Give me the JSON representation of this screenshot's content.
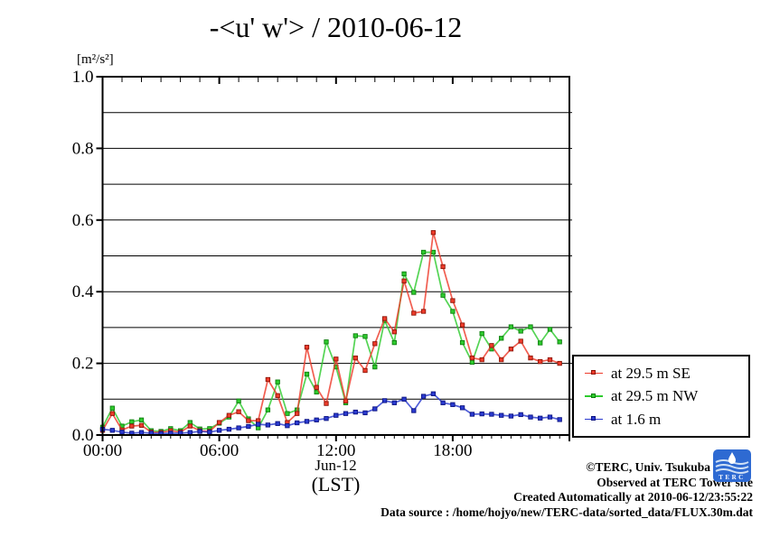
{
  "y_axis_unit": "[m²/s²]",
  "footer": {
    "copyright": "©TERC, Univ. Tsukuba",
    "observed": "Observed at TERC Tower site",
    "created": "Created Automatically at 2010-06-12/23:55:22",
    "datasource": "Data source : /home/hojyo/new/TERC-data/sorted_data/FLUX.30m.dat",
    "logo_text": "TERC"
  },
  "chart_data": {
    "type": "line",
    "title": "-<u' w'> / 2010-06-12",
    "ylabel_unit": "[m²/s²]",
    "xlabel_date": "Jun-12",
    "xlabel_tz": "(LST)",
    "xlim": [
      0,
      24
    ],
    "ylim": [
      0,
      1.0
    ],
    "grid": true,
    "legend_position": "outside-right-bottom",
    "yticks": {
      "grid_step": 0.1,
      "labeled": [
        {
          "v": 0.0,
          "label": "0.0"
        },
        {
          "v": 0.2,
          "label": "0.2"
        },
        {
          "v": 0.4,
          "label": "0.4"
        },
        {
          "v": 0.6,
          "label": "0.6"
        },
        {
          "v": 0.8,
          "label": "0.8"
        },
        {
          "v": 1.0,
          "label": "1.0"
        }
      ]
    },
    "xticks": {
      "minor_step_hours": 0.5,
      "major_step_hours": 6,
      "labeled": [
        {
          "h": 0,
          "label": "00:00"
        },
        {
          "h": 6,
          "label": "06:00"
        },
        {
          "h": 12,
          "label": "12:00"
        },
        {
          "h": 18,
          "label": "18:00"
        }
      ]
    },
    "x_hours": [
      0,
      0.5,
      1,
      1.5,
      2,
      2.5,
      3,
      3.5,
      4,
      4.5,
      5,
      5.5,
      6,
      6.5,
      7,
      7.5,
      8,
      8.5,
      9,
      9.5,
      10,
      10.5,
      11,
      11.5,
      12,
      12.5,
      13,
      13.5,
      14,
      14.5,
      15,
      15.5,
      16,
      16.5,
      17,
      17.5,
      18,
      18.5,
      19,
      19.5,
      20,
      20.5,
      21,
      21.5,
      22,
      22.5,
      23,
      23.5
    ],
    "draw_order": [
      1,
      0,
      2
    ],
    "series": [
      {
        "name": "at 29.5 m SE",
        "color": "#ee3b2b",
        "marker_stroke": "#8d1608",
        "values": [
          0.013,
          0.06,
          0.014,
          0.025,
          0.027,
          0.008,
          0.007,
          0.012,
          0.008,
          0.025,
          0.012,
          0.01,
          0.035,
          0.055,
          0.065,
          0.04,
          0.04,
          0.155,
          0.11,
          0.035,
          0.06,
          0.245,
          0.133,
          0.088,
          0.212,
          0.095,
          0.215,
          0.18,
          0.255,
          0.325,
          0.288,
          0.43,
          0.34,
          0.345,
          0.565,
          0.47,
          0.375,
          0.307,
          0.215,
          0.21,
          0.25,
          0.21,
          0.24,
          0.262,
          0.215,
          0.205,
          0.21,
          0.2
        ]
      },
      {
        "name": "at 29.5 m NW",
        "color": "#2ecb2e",
        "marker_stroke": "#0e7e0e",
        "values": [
          0.022,
          0.075,
          0.025,
          0.037,
          0.042,
          0.012,
          0.01,
          0.018,
          0.012,
          0.035,
          0.017,
          0.018,
          0.033,
          0.05,
          0.095,
          0.045,
          0.02,
          0.07,
          0.148,
          0.06,
          0.07,
          0.17,
          0.12,
          0.26,
          0.19,
          0.09,
          0.277,
          0.275,
          0.19,
          0.32,
          0.258,
          0.45,
          0.398,
          0.51,
          0.51,
          0.39,
          0.345,
          0.258,
          0.203,
          0.283,
          0.24,
          0.27,
          0.302,
          0.29,
          0.302,
          0.257,
          0.295,
          0.26
        ]
      },
      {
        "name": "at 1.6 m",
        "color": "#2a3ad0",
        "marker_stroke": "#0b1280",
        "values": [
          0.016,
          0.013,
          0.008,
          0.005,
          0.007,
          0.005,
          0.004,
          0.005,
          0.005,
          0.007,
          0.01,
          0.008,
          0.013,
          0.016,
          0.02,
          0.024,
          0.03,
          0.028,
          0.032,
          0.026,
          0.034,
          0.038,
          0.042,
          0.046,
          0.055,
          0.06,
          0.064,
          0.062,
          0.073,
          0.096,
          0.09,
          0.1,
          0.068,
          0.108,
          0.115,
          0.09,
          0.085,
          0.076,
          0.058,
          0.059,
          0.058,
          0.055,
          0.053,
          0.057,
          0.05,
          0.047,
          0.05,
          0.043
        ]
      }
    ]
  }
}
